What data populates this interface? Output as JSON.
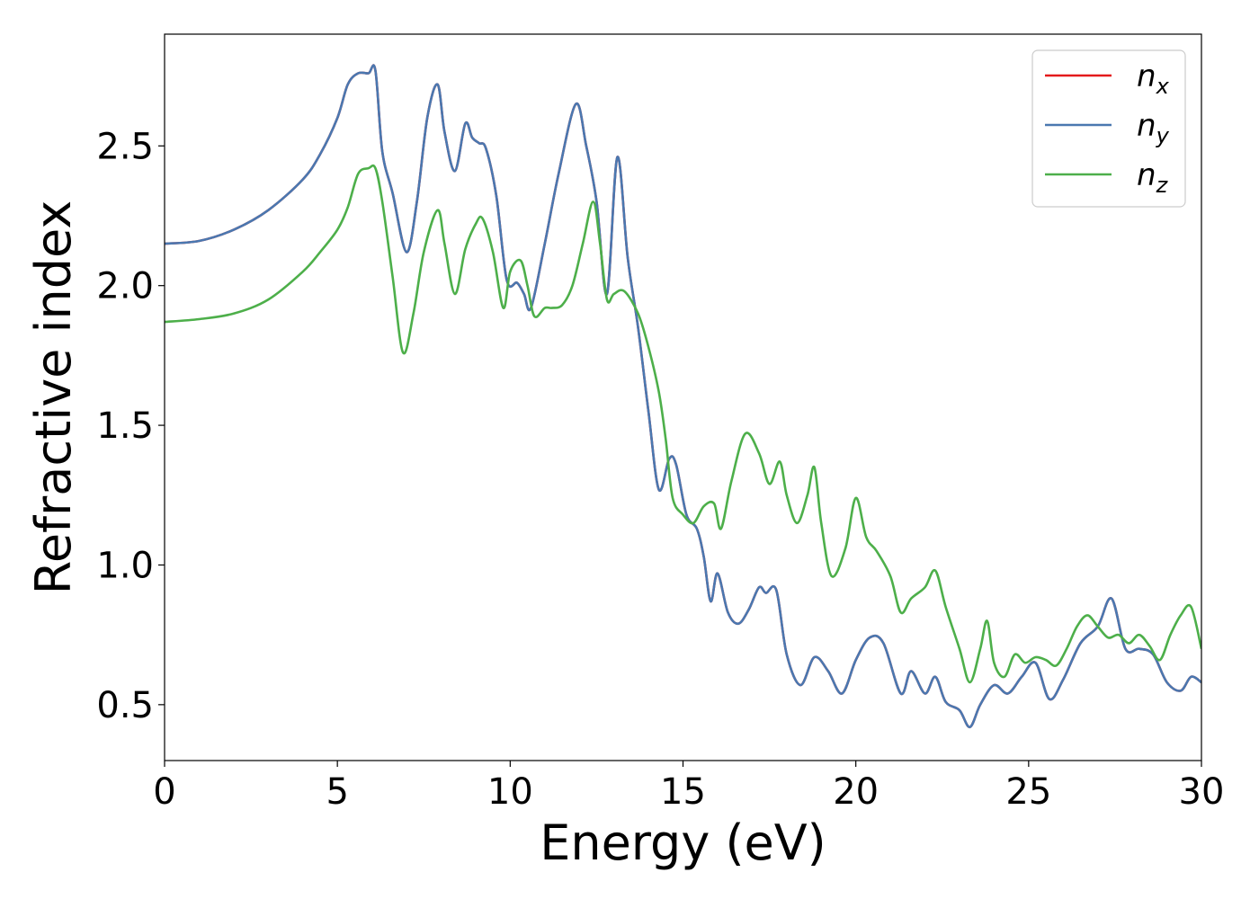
{
  "chart_data": {
    "type": "line",
    "title": "",
    "xlabel": "Energy (eV)",
    "ylabel": "Refractive index",
    "xlim": [
      0,
      30
    ],
    "ylim": [
      0.3,
      2.9
    ],
    "xticks": [
      0,
      5,
      10,
      15,
      20,
      25,
      30
    ],
    "xtick_labels": [
      "0",
      "5",
      "10",
      "15",
      "20",
      "25",
      "30"
    ],
    "yticks": [
      0.5,
      1.0,
      1.5,
      2.0,
      2.5
    ],
    "ytick_labels": [
      "0.5",
      "1.0",
      "1.5",
      "2.0",
      "2.5"
    ],
    "grid": false,
    "legend_position": "top-right",
    "series": [
      {
        "name": "n",
        "subscript": "x",
        "color": "#e41a1c",
        "x": [
          0,
          1,
          2,
          3,
          4,
          4.5,
          5,
          5.3,
          5.6,
          5.9,
          6.1,
          6.3,
          6.6,
          7.0,
          7.3,
          7.6,
          7.9,
          8.1,
          8.4,
          8.7,
          8.9,
          9.1,
          9.3,
          9.6,
          9.9,
          10.2,
          10.4,
          10.6,
          11.0,
          11.4,
          11.9,
          12.2,
          12.5,
          12.8,
          13.1,
          13.4,
          13.7,
          14.0,
          14.3,
          14.6,
          14.8,
          15.1,
          15.4,
          15.6,
          15.8,
          16.0,
          16.3,
          16.6,
          16.9,
          17.2,
          17.4,
          17.7,
          18.0,
          18.4,
          18.8,
          19.2,
          19.6,
          20.0,
          20.4,
          20.8,
          21.3,
          21.6,
          22.0,
          22.3,
          22.6,
          23.0,
          23.3,
          23.6,
          24.0,
          24.4,
          24.8,
          25.2,
          25.6,
          26.0,
          26.5,
          27.0,
          27.4,
          27.8,
          28.2,
          28.6,
          29.0,
          29.4,
          29.7,
          30.0
        ],
        "y": [
          2.15,
          2.16,
          2.2,
          2.27,
          2.38,
          2.47,
          2.6,
          2.72,
          2.76,
          2.76,
          2.77,
          2.48,
          2.33,
          2.12,
          2.3,
          2.6,
          2.72,
          2.55,
          2.41,
          2.58,
          2.53,
          2.51,
          2.49,
          2.32,
          2.02,
          2.01,
          1.97,
          1.92,
          2.15,
          2.4,
          2.65,
          2.5,
          2.3,
          1.97,
          2.46,
          2.1,
          1.85,
          1.55,
          1.27,
          1.38,
          1.36,
          1.18,
          1.13,
          1.03,
          0.87,
          0.97,
          0.83,
          0.79,
          0.84,
          0.92,
          0.9,
          0.91,
          0.68,
          0.57,
          0.67,
          0.62,
          0.54,
          0.66,
          0.74,
          0.72,
          0.54,
          0.62,
          0.54,
          0.6,
          0.51,
          0.48,
          0.42,
          0.5,
          0.57,
          0.54,
          0.6,
          0.65,
          0.52,
          0.59,
          0.72,
          0.78,
          0.88,
          0.7,
          0.7,
          0.68,
          0.58,
          0.55,
          0.6,
          0.58
        ]
      },
      {
        "name": "n",
        "subscript": "y",
        "color": "#4a78b0",
        "x": [
          0,
          1,
          2,
          3,
          4,
          4.5,
          5,
          5.3,
          5.6,
          5.9,
          6.1,
          6.3,
          6.6,
          7.0,
          7.3,
          7.6,
          7.9,
          8.1,
          8.4,
          8.7,
          8.9,
          9.1,
          9.3,
          9.6,
          9.9,
          10.2,
          10.4,
          10.6,
          11.0,
          11.4,
          11.9,
          12.2,
          12.5,
          12.8,
          13.1,
          13.4,
          13.7,
          14.0,
          14.3,
          14.6,
          14.8,
          15.1,
          15.4,
          15.6,
          15.8,
          16.0,
          16.3,
          16.6,
          16.9,
          17.2,
          17.4,
          17.7,
          18.0,
          18.4,
          18.8,
          19.2,
          19.6,
          20.0,
          20.4,
          20.8,
          21.3,
          21.6,
          22.0,
          22.3,
          22.6,
          23.0,
          23.3,
          23.6,
          24.0,
          24.4,
          24.8,
          25.2,
          25.6,
          26.0,
          26.5,
          27.0,
          27.4,
          27.8,
          28.2,
          28.6,
          29.0,
          29.4,
          29.7,
          30.0
        ],
        "y": [
          2.15,
          2.16,
          2.2,
          2.27,
          2.38,
          2.47,
          2.6,
          2.72,
          2.76,
          2.76,
          2.77,
          2.48,
          2.33,
          2.12,
          2.3,
          2.6,
          2.72,
          2.55,
          2.41,
          2.58,
          2.53,
          2.51,
          2.49,
          2.32,
          2.02,
          2.01,
          1.97,
          1.92,
          2.15,
          2.4,
          2.65,
          2.5,
          2.3,
          1.97,
          2.46,
          2.1,
          1.85,
          1.55,
          1.27,
          1.38,
          1.36,
          1.18,
          1.13,
          1.03,
          0.87,
          0.97,
          0.83,
          0.79,
          0.84,
          0.92,
          0.9,
          0.91,
          0.68,
          0.57,
          0.67,
          0.62,
          0.54,
          0.66,
          0.74,
          0.72,
          0.54,
          0.62,
          0.54,
          0.6,
          0.51,
          0.48,
          0.42,
          0.5,
          0.57,
          0.54,
          0.6,
          0.65,
          0.52,
          0.59,
          0.72,
          0.78,
          0.88,
          0.7,
          0.7,
          0.68,
          0.58,
          0.55,
          0.6,
          0.58
        ]
      },
      {
        "name": "n",
        "subscript": "z",
        "color": "#4daf4a",
        "x": [
          0,
          1,
          2,
          3,
          4,
          4.5,
          5,
          5.3,
          5.6,
          5.9,
          6.1,
          6.3,
          6.6,
          6.9,
          7.2,
          7.5,
          7.9,
          8.1,
          8.4,
          8.7,
          9.0,
          9.2,
          9.5,
          9.8,
          10.0,
          10.3,
          10.5,
          10.7,
          11.0,
          11.2,
          11.5,
          11.8,
          12.1,
          12.4,
          12.6,
          12.8,
          13.0,
          13.3,
          13.7,
          14.0,
          14.3,
          14.5,
          14.7,
          15.0,
          15.3,
          15.6,
          15.9,
          16.1,
          16.4,
          16.8,
          17.2,
          17.5,
          17.8,
          18.0,
          18.3,
          18.6,
          18.8,
          19.0,
          19.3,
          19.7,
          20.0,
          20.3,
          20.6,
          21.0,
          21.3,
          21.6,
          22.0,
          22.3,
          22.6,
          23.0,
          23.3,
          23.6,
          23.8,
          24.0,
          24.3,
          24.6,
          24.9,
          25.2,
          25.5,
          25.8,
          26.1,
          26.4,
          26.7,
          27.0,
          27.3,
          27.6,
          27.9,
          28.2,
          28.5,
          28.8,
          29.1,
          29.4,
          29.7,
          30.0
        ],
        "y": [
          1.87,
          1.88,
          1.9,
          1.95,
          2.05,
          2.12,
          2.2,
          2.28,
          2.4,
          2.42,
          2.42,
          2.3,
          2.03,
          1.76,
          1.9,
          2.12,
          2.27,
          2.15,
          1.97,
          2.13,
          2.22,
          2.24,
          2.12,
          1.92,
          2.05,
          2.09,
          2.0,
          1.89,
          1.92,
          1.92,
          1.93,
          2.0,
          2.15,
          2.3,
          2.15,
          1.95,
          1.97,
          1.98,
          1.9,
          1.78,
          1.62,
          1.45,
          1.24,
          1.18,
          1.15,
          1.21,
          1.22,
          1.13,
          1.3,
          1.47,
          1.4,
          1.29,
          1.37,
          1.25,
          1.15,
          1.25,
          1.35,
          1.15,
          0.96,
          1.06,
          1.24,
          1.1,
          1.05,
          0.96,
          0.83,
          0.88,
          0.92,
          0.98,
          0.85,
          0.7,
          0.58,
          0.7,
          0.8,
          0.65,
          0.6,
          0.68,
          0.65,
          0.67,
          0.66,
          0.64,
          0.7,
          0.78,
          0.82,
          0.78,
          0.74,
          0.75,
          0.72,
          0.75,
          0.71,
          0.66,
          0.75,
          0.82,
          0.85,
          0.7
        ]
      }
    ]
  }
}
